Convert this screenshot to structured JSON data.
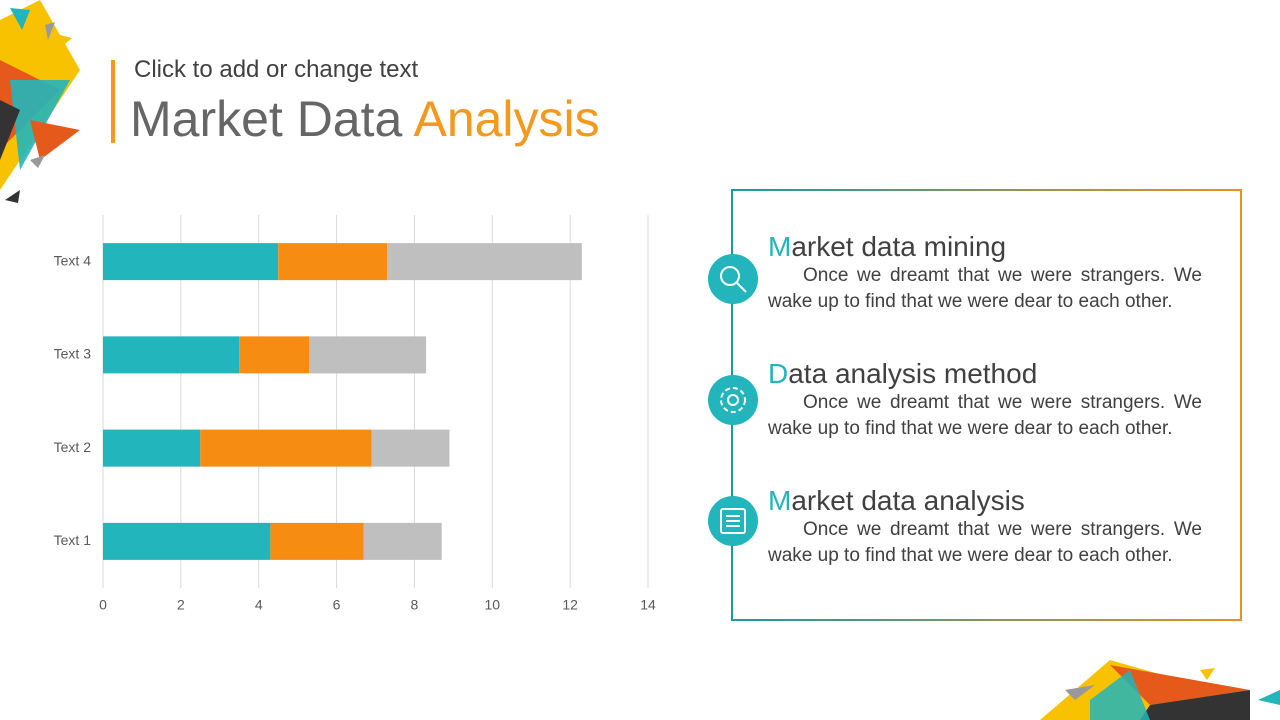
{
  "header": {
    "subtitle": "Click to add or change text",
    "title_main": "Market Data",
    "title_accent": "Analysis"
  },
  "chart_data": {
    "type": "bar",
    "orientation": "horizontal",
    "stacked": true,
    "categories": [
      "Text 1",
      "Text 2",
      "Text 3",
      "Text 4"
    ],
    "series": [
      {
        "color": "#22b5bb",
        "values": [
          4.3,
          2.5,
          3.5,
          4.5
        ]
      },
      {
        "color": "#f68c12",
        "values": [
          2.4,
          4.4,
          1.8,
          2.8
        ]
      },
      {
        "color": "#bfbfbf",
        "values": [
          2.0,
          2.0,
          3.0,
          5.0
        ]
      }
    ],
    "xlim": [
      0,
      14
    ],
    "xticks": [
      0,
      2,
      4,
      6,
      8,
      10,
      12,
      14
    ],
    "grid": true
  },
  "panel": {
    "items": [
      {
        "heading": "Market data mining",
        "body": "Once we dreamt that we were strangers. We wake up to find that we were dear to each other."
      },
      {
        "heading": "Data analysis method",
        "body": "Once we dreamt that we were strangers. We wake up to find that we were dear to each other."
      },
      {
        "heading": "Market data analysis",
        "body": "Once we dreamt that we were strangers. We wake up to find that we were dear to each other."
      }
    ]
  }
}
